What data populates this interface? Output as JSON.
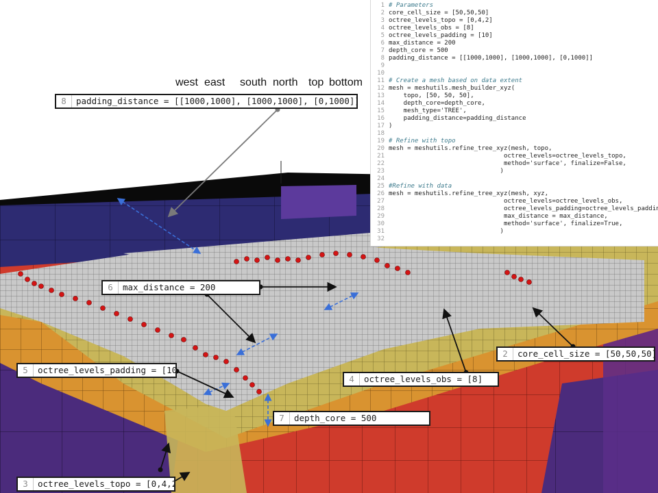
{
  "direction_labels": {
    "west": "west",
    "east": "east",
    "south": "south",
    "north": "north",
    "top": "top",
    "bottom": "bottom"
  },
  "code_lines": [
    {
      "n": "1",
      "text": "# Parameters",
      "kind": "comment"
    },
    {
      "n": "2",
      "text": "core_cell_size = [50,50,50]",
      "kind": "code"
    },
    {
      "n": "3",
      "text": "octree_levels_topo = [0,4,2]",
      "kind": "code"
    },
    {
      "n": "4",
      "text": "octree_levels_obs = [8]",
      "kind": "code"
    },
    {
      "n": "5",
      "text": "octree_levels_padding = [10]",
      "kind": "code"
    },
    {
      "n": "6",
      "text": "max_distance = 200",
      "kind": "code"
    },
    {
      "n": "7",
      "text": "depth_core = 500",
      "kind": "code"
    },
    {
      "n": "8",
      "text": "padding_distance = [[1000,1000], [1000,1000], [0,1000]]",
      "kind": "code"
    },
    {
      "n": "9",
      "text": "",
      "kind": "blank"
    },
    {
      "n": "10",
      "text": "",
      "kind": "blank"
    },
    {
      "n": "11",
      "text": "# Create a mesh based on data extent",
      "kind": "comment"
    },
    {
      "n": "12",
      "text": "mesh = meshutils.mesh_builder_xyz(",
      "kind": "code"
    },
    {
      "n": "13",
      "text": "    topo, [50, 50, 50],",
      "kind": "code"
    },
    {
      "n": "14",
      "text": "    depth_core=depth_core,",
      "kind": "code"
    },
    {
      "n": "15",
      "text": "    mesh_type='TREE',",
      "kind": "code"
    },
    {
      "n": "16",
      "text": "    padding_distance=padding_distance",
      "kind": "code"
    },
    {
      "n": "17",
      "text": ")",
      "kind": "code"
    },
    {
      "n": "18",
      "text": "",
      "kind": "blank"
    },
    {
      "n": "19",
      "text": "# Refine with topo",
      "kind": "comment"
    },
    {
      "n": "20",
      "text": "mesh = meshutils.refine_tree_xyz(mesh, topo,",
      "kind": "code"
    },
    {
      "n": "21",
      "text": "                               octree_levels=octree_levels_topo,",
      "kind": "code"
    },
    {
      "n": "22",
      "text": "                               method='surface', finalize=False,",
      "kind": "code"
    },
    {
      "n": "23",
      "text": "                              )",
      "kind": "code"
    },
    {
      "n": "24",
      "text": "",
      "kind": "blank"
    },
    {
      "n": "25",
      "text": "#Refine with data",
      "kind": "comment"
    },
    {
      "n": "26",
      "text": "mesh = meshutils.refine_tree_xyz(mesh, xyz,",
      "kind": "code"
    },
    {
      "n": "27",
      "text": "                               octree_levels=octree_levels_obs,",
      "kind": "code"
    },
    {
      "n": "28",
      "text": "                               octree_levels_padding=octree_levels_padding,",
      "kind": "code"
    },
    {
      "n": "29",
      "text": "                               max_distance = max_distance,",
      "kind": "code"
    },
    {
      "n": "30",
      "text": "                               method='surface', finalize=True,",
      "kind": "code"
    },
    {
      "n": "31",
      "text": "                              )",
      "kind": "code"
    },
    {
      "n": "32",
      "text": "",
      "kind": "blank"
    }
  ],
  "callouts": {
    "padding_distance": {
      "line": "8",
      "text": "padding_distance = [[1000,1000], [1000,1000], [0,1000]]"
    },
    "max_distance": {
      "line": "6",
      "text": "max_distance = 200"
    },
    "core_cell_size": {
      "line": "2",
      "text": "core_cell_size = [50,50,50]"
    },
    "octree_levels_obs": {
      "line": "4",
      "text": "octree_levels_obs = [8]"
    },
    "octree_levels_padding": {
      "line": "5",
      "text": "octree_levels_padding = [10"
    },
    "depth_core": {
      "line": "7",
      "text": "depth_core = 500"
    },
    "octree_levels_topo": {
      "line": "3",
      "text": "octree_levels_topo = [0,4,2"
    }
  },
  "colors": {
    "background": "#ffffff",
    "deep_blue": "#2b2a6e",
    "purple": "#4a2c7a",
    "red": "#d0392b",
    "orange": "#e08a2a",
    "olive": "#c8b65a",
    "gray_cells": "#c9c9c9",
    "data_points": "#d41414",
    "dashed_arrow": "#3a6fd8"
  }
}
